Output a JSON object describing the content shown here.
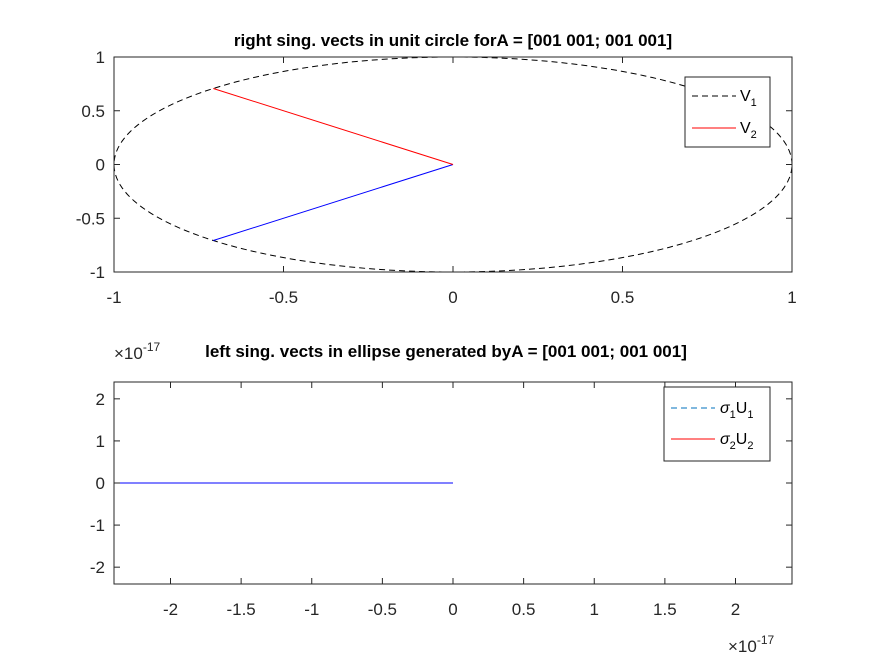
{
  "chart_data": [
    {
      "type": "line",
      "title": "right sing. vects in unit circle forA = [001 001; 001 001]",
      "xlabel": "",
      "ylabel": "",
      "xlim": [
        -1,
        1
      ],
      "ylim": [
        -1,
        1
      ],
      "xticks": [
        "-1",
        "-0.5",
        "0",
        "0.5",
        "1"
      ],
      "yticks": [
        "1",
        "0.5",
        "0",
        "-0.5",
        "-1"
      ],
      "grid": false,
      "legend_position": "top-right",
      "series": [
        {
          "name": "circle",
          "style": "dashed",
          "color": "#000000",
          "shape": "unit-circle"
        },
        {
          "name": "V_1",
          "style": "solid",
          "color": "#0000ff",
          "x": [
            0,
            -0.7071
          ],
          "y": [
            0,
            -0.7071
          ]
        },
        {
          "name": "V_2",
          "style": "solid",
          "color": "#ff0000",
          "x": [
            0,
            -0.7071
          ],
          "y": [
            0,
            0.7071
          ]
        }
      ],
      "legend": [
        {
          "main": "V",
          "sub": "1",
          "style": "dashed",
          "color": "#000000"
        },
        {
          "main": "V",
          "sub": "2",
          "style": "solid",
          "color": "#ff0000"
        }
      ]
    },
    {
      "type": "line",
      "title": "left sing. vects in ellipse generated byA = [001 001; 001 001]",
      "xlabel": "",
      "ylabel": "",
      "xlim": [
        -2.4,
        2.4
      ],
      "ylim": [
        -2.4,
        2.4
      ],
      "xticks": [
        "-2",
        "-1.5",
        "-1",
        "-0.5",
        "0",
        "0.5",
        "1",
        "1.5",
        "2"
      ],
      "yticks": [
        "2",
        "1",
        "0",
        "-1",
        "-2"
      ],
      "x_exponent": "-17",
      "y_exponent": "-17",
      "exponent_prefix": "×10",
      "grid": false,
      "legend_position": "top-right",
      "series": [
        {
          "name": "σ1U1",
          "style": "dashed",
          "color": "#0072bd",
          "x": [
            -2.4,
            0
          ],
          "y": [
            0,
            0
          ]
        },
        {
          "name": "σ2U2",
          "style": "solid",
          "color": "#0000ff",
          "x": [
            -2.4,
            0
          ],
          "y": [
            0,
            0
          ]
        }
      ],
      "legend": [
        {
          "sym": "σ",
          "s1": "1",
          "main": "U",
          "s2": "1",
          "style": "dashed",
          "color": "#0072bd"
        },
        {
          "sym": "σ",
          "s1": "2",
          "main": "U",
          "s2": "2",
          "style": "solid",
          "color": "#ff0000"
        }
      ]
    }
  ]
}
